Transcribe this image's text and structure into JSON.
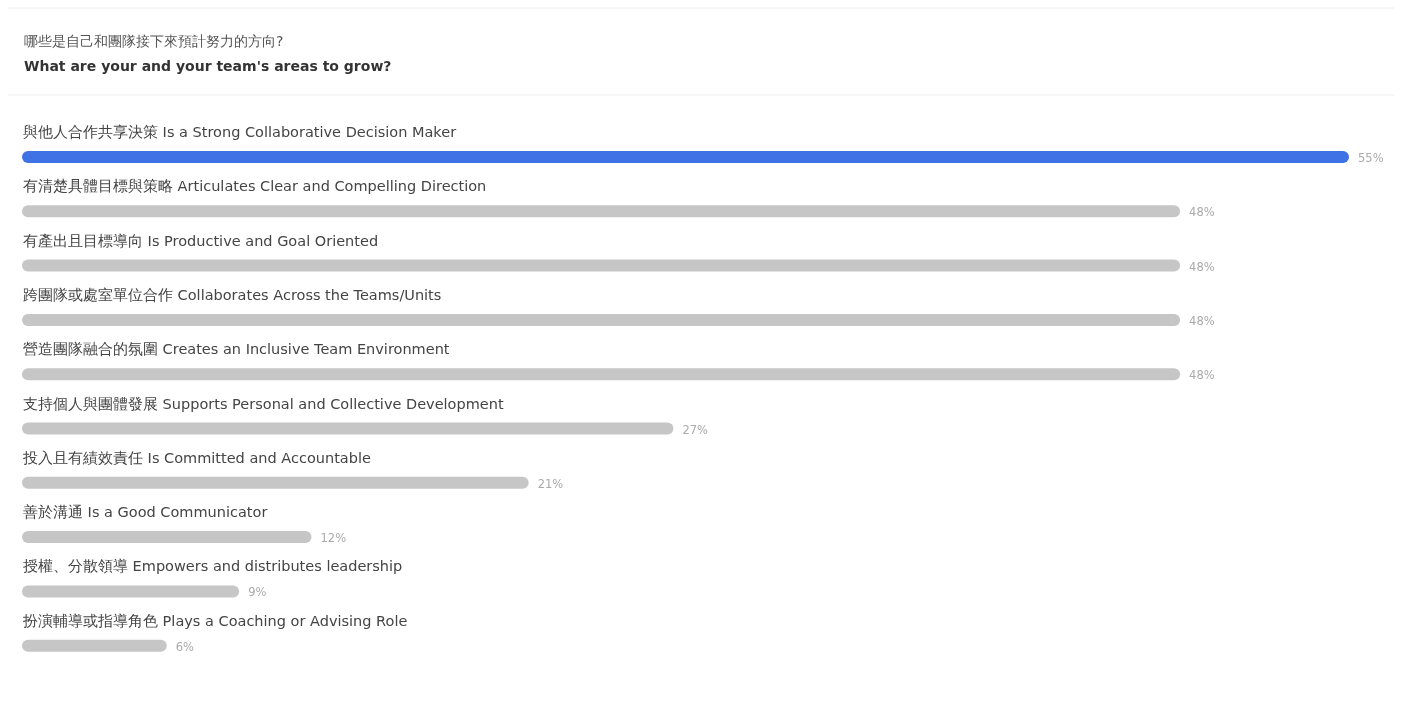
{
  "chart_data": {
    "type": "bar",
    "orientation": "horizontal",
    "title": "哪些是自己和團隊接下來預計努力的方向?",
    "subtitle": "What are your and your team's areas to grow?",
    "categories": [
      "與他人合作共享決策 Is a Strong Collaborative Decision Maker",
      "有清楚具體目標與策略 Articulates Clear and Compelling Direction",
      "有產出且目標導向 Is Productive and Goal Oriented",
      "跨團隊或處室單位合作 Collaborates Across the Teams/Units",
      "營造團隊融合的氛圍 Creates an Inclusive Team Environment",
      "支持個人與團體發展 Supports Personal and Collective Development",
      "投入且有績效責任 Is Committed and Accountable",
      "善於溝通 Is a Good Communicator",
      "授權、分散領導 Empowers and distributes leadership",
      "扮演輔導或指導角色 Plays a Coaching or Advising Role"
    ],
    "values": [
      55,
      48,
      48,
      48,
      48,
      27,
      21,
      12,
      9,
      6
    ],
    "colors": [
      "#3f72e4",
      "#c6c6c6",
      "#c6c6c6",
      "#c6c6c6",
      "#c6c6c6",
      "#c6c6c6",
      "#c6c6c6",
      "#c6c6c6",
      "#c6c6c6",
      "#c6c6c6"
    ],
    "value_labels": [
      "55%",
      "48%",
      "48%",
      "48%",
      "48%",
      "27%",
      "21%",
      "12%",
      "9%",
      "6%"
    ]
  }
}
